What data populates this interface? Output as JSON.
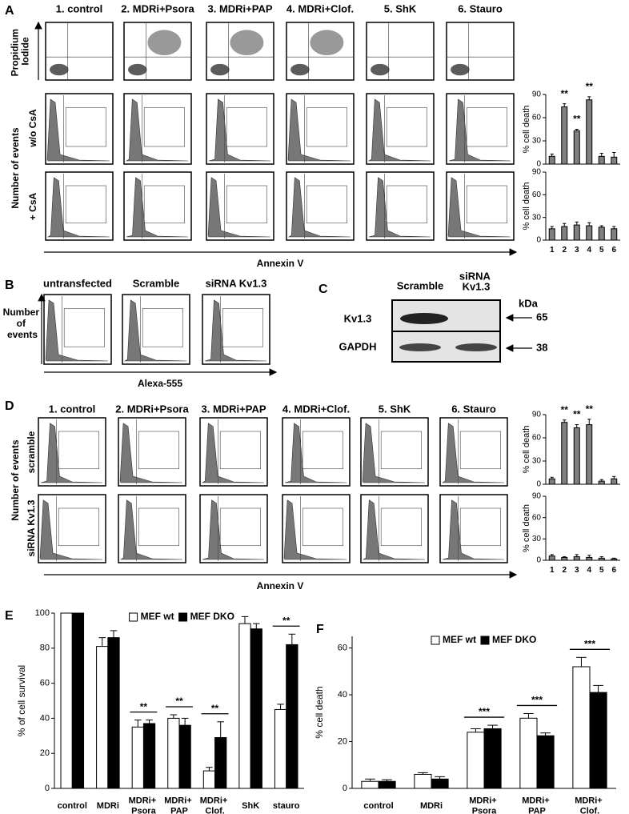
{
  "panel_labels": [
    "A",
    "B",
    "C",
    "D",
    "E",
    "F"
  ],
  "panel_a": {
    "columns": [
      "1. control",
      "2. MDRi+Psora",
      "3. MDRi+PAP",
      "4. MDRi+Clof.",
      "5. ShK",
      "6. Stauro"
    ],
    "row_labels": [
      "Propidium Iodide",
      "w/o CsA",
      "+ CsA"
    ],
    "y_axis_label": "Number of events",
    "x_axis_label": "Annexin V"
  },
  "panel_b": {
    "columns": [
      "untransfected",
      "Scramble",
      "siRNA Kv1.3"
    ],
    "y_axis_label": "Number of events",
    "x_axis_label": "Alexa-555"
  },
  "panel_c": {
    "columns": [
      "Scramble",
      "siRNA Kv1.3"
    ],
    "rows": [
      "Kv1.3",
      "GAPDH"
    ],
    "unit": "kDa",
    "markers": [
      65,
      38
    ]
  },
  "panel_d": {
    "columns": [
      "1. control",
      "2. MDRi+Psora",
      "3. MDRi+PAP",
      "4. MDRi+Clof.",
      "5. ShK",
      "6. Stauro"
    ],
    "row_labels": [
      "scramble",
      "siRNA Kv1.3"
    ],
    "y_axis_label": "Number of events",
    "x_axis_label": "Annexin V"
  },
  "chart_data": [
    {
      "type": "bar",
      "y_label": "% cell death",
      "values": [
        10,
        74,
        43,
        83,
        10,
        9
      ],
      "errors": [
        3,
        4,
        2,
        4,
        4,
        6
      ],
      "significance": [
        null,
        "**",
        "**",
        "**",
        null,
        null
      ],
      "color": "#808080",
      "ylim": [
        0,
        90
      ],
      "yticks": [
        0,
        30,
        60,
        90
      ]
    },
    {
      "type": "bar",
      "y_label": "% cell death",
      "categories": [
        "1",
        "2",
        "3",
        "4",
        "5",
        "6"
      ],
      "values": [
        15,
        18,
        20,
        19,
        17,
        15
      ],
      "errors": [
        3,
        4,
        4,
        4,
        2,
        3
      ],
      "color": "#808080",
      "ylim": [
        0,
        90
      ],
      "yticks": [
        0,
        30,
        60,
        90
      ]
    },
    {
      "type": "bar",
      "y_label": "% cell death",
      "values": [
        7,
        80,
        73,
        77,
        4,
        7
      ],
      "errors": [
        2,
        3,
        4,
        7,
        2,
        3
      ],
      "significance": [
        null,
        "**",
        "**",
        "**",
        null,
        null
      ],
      "color": "#808080",
      "ylim": [
        0,
        90
      ],
      "yticks": [
        0,
        30,
        60,
        90
      ]
    },
    {
      "type": "bar",
      "y_label": "% cell death",
      "categories": [
        "1",
        "2",
        "3",
        "4",
        "5",
        "6"
      ],
      "values": [
        6,
        4,
        5,
        4,
        3,
        2
      ],
      "errors": [
        2,
        1,
        3,
        3,
        2,
        1
      ],
      "color": "#808080",
      "ylim": [
        0,
        90
      ],
      "yticks": [
        0,
        30,
        60,
        90
      ]
    },
    {
      "type": "bar",
      "y_label": "% of cell survival",
      "categories": [
        "control",
        "MDRi",
        "MDRi+ Psora",
        "MDRi+ PAP",
        "MDRi+ Clof.",
        "ShK",
        "stauro"
      ],
      "series": [
        {
          "name": "MEF wt",
          "color": "#ffffff",
          "values": [
            100,
            81,
            35,
            40,
            10,
            94,
            45
          ],
          "errors": [
            0,
            5,
            4,
            2,
            2,
            4,
            3
          ]
        },
        {
          "name": "MEF DKO",
          "color": "#000000",
          "values": [
            100,
            86,
            37,
            36,
            29,
            91,
            82
          ],
          "errors": [
            0,
            4,
            2,
            4,
            9,
            3,
            6
          ]
        }
      ],
      "significance": [
        null,
        null,
        "**",
        "**",
        "**",
        null,
        "**"
      ],
      "legend": "top",
      "ylim": [
        0,
        100
      ],
      "yticks": [
        0,
        20,
        40,
        60,
        80,
        100
      ]
    },
    {
      "type": "bar",
      "y_label": "% cell death",
      "categories": [
        "control",
        "MDRi",
        "MDRi+ Psora",
        "MDRi+ PAP",
        "MDRi+ Clof."
      ],
      "series": [
        {
          "name": "MEF wt",
          "color": "#ffffff",
          "values": [
            3,
            6,
            24,
            30,
            52
          ],
          "errors": [
            1,
            0.7,
            1.5,
            2,
            4
          ]
        },
        {
          "name": "MEF DKO",
          "color": "#000000",
          "values": [
            3,
            4,
            25.5,
            22.5,
            41
          ],
          "errors": [
            0.7,
            1,
            1.5,
            1.2,
            3
          ]
        }
      ],
      "significance": [
        null,
        null,
        "***",
        "***",
        "***"
      ],
      "legend": "top",
      "ylim": [
        0,
        65
      ],
      "yticks": [
        0,
        20,
        40,
        60
      ]
    }
  ]
}
